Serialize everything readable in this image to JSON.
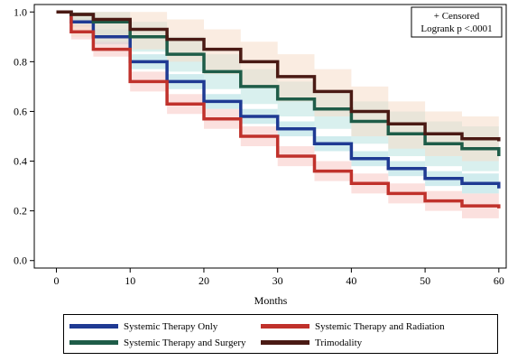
{
  "chart_data": {
    "type": "line",
    "subtype": "kaplan-meier survival with confidence bands",
    "xlabel": "Months",
    "ylabel": "",
    "xlim": [
      -3,
      61
    ],
    "ylim": [
      -0.03,
      1.03
    ],
    "xticks": [
      0,
      10,
      20,
      30,
      40,
      50,
      60
    ],
    "yticks": [
      0.0,
      0.2,
      0.4,
      0.6,
      0.8,
      1.0
    ],
    "ytick_labels": [
      "0.0",
      "0.2",
      "0.4",
      "0.6",
      "0.8",
      "1.0"
    ],
    "grid": false,
    "annotation": {
      "line1": "+ Censored",
      "line2": "Logrank p <.0001",
      "position": "top-right"
    },
    "legend_position": "bottom",
    "series": [
      {
        "name": "Systemic Therapy Only",
        "color": "#1f3a93",
        "band_color": "#a9dde0",
        "x": [
          0,
          2,
          5,
          10,
          15,
          20,
          25,
          30,
          35,
          40,
          45,
          50,
          55,
          60
        ],
        "y": [
          1.0,
          0.96,
          0.9,
          0.8,
          0.72,
          0.64,
          0.58,
          0.53,
          0.47,
          0.41,
          0.37,
          0.33,
          0.31,
          0.29
        ],
        "lower": [
          1.0,
          0.94,
          0.87,
          0.77,
          0.69,
          0.61,
          0.55,
          0.5,
          0.44,
          0.38,
          0.34,
          0.3,
          0.27,
          0.25
        ],
        "upper": [
          1.0,
          0.98,
          0.93,
          0.83,
          0.75,
          0.67,
          0.61,
          0.56,
          0.5,
          0.44,
          0.4,
          0.36,
          0.35,
          0.33
        ]
      },
      {
        "name": "Systemic Therapy and Radiation",
        "color": "#c0312b",
        "band_color": "#f7c6c3",
        "x": [
          0,
          2,
          5,
          10,
          15,
          20,
          25,
          30,
          35,
          40,
          45,
          50,
          55,
          60
        ],
        "y": [
          1.0,
          0.92,
          0.85,
          0.72,
          0.63,
          0.57,
          0.5,
          0.42,
          0.36,
          0.31,
          0.27,
          0.24,
          0.22,
          0.21
        ],
        "lower": [
          1.0,
          0.89,
          0.82,
          0.68,
          0.59,
          0.53,
          0.46,
          0.38,
          0.32,
          0.27,
          0.23,
          0.2,
          0.17,
          0.15
        ],
        "upper": [
          1.0,
          0.95,
          0.88,
          0.76,
          0.67,
          0.61,
          0.54,
          0.46,
          0.4,
          0.35,
          0.31,
          0.28,
          0.27,
          0.27
        ]
      },
      {
        "name": "Systemic Therapy and Surgery",
        "color": "#1e5c48",
        "band_color": "#b9e4e0",
        "x": [
          0,
          2,
          5,
          10,
          15,
          20,
          25,
          30,
          35,
          40,
          45,
          50,
          55,
          60
        ],
        "y": [
          1.0,
          0.99,
          0.96,
          0.9,
          0.83,
          0.76,
          0.7,
          0.65,
          0.61,
          0.56,
          0.51,
          0.47,
          0.45,
          0.42
        ],
        "lower": [
          1.0,
          0.96,
          0.9,
          0.84,
          0.76,
          0.69,
          0.63,
          0.58,
          0.53,
          0.47,
          0.42,
          0.38,
          0.36,
          0.34
        ],
        "upper": [
          1.0,
          1.0,
          1.0,
          0.96,
          0.9,
          0.83,
          0.77,
          0.72,
          0.68,
          0.64,
          0.6,
          0.56,
          0.54,
          0.51
        ]
      },
      {
        "name": "Trimodality",
        "color": "#4a1a14",
        "band_color": "#f6dcc8",
        "x": [
          0,
          2,
          5,
          10,
          15,
          20,
          25,
          30,
          35,
          40,
          45,
          50,
          55,
          60
        ],
        "y": [
          1.0,
          0.99,
          0.97,
          0.93,
          0.89,
          0.85,
          0.8,
          0.74,
          0.68,
          0.6,
          0.55,
          0.51,
          0.49,
          0.48
        ],
        "lower": [
          1.0,
          0.9,
          0.88,
          0.85,
          0.8,
          0.75,
          0.7,
          0.64,
          0.58,
          0.5,
          0.45,
          0.42,
          0.4,
          0.39
        ],
        "upper": [
          1.0,
          1.0,
          1.0,
          1.0,
          0.97,
          0.93,
          0.88,
          0.83,
          0.77,
          0.7,
          0.64,
          0.6,
          0.58,
          0.57
        ]
      }
    ],
    "legend_order": [
      0,
      1,
      2,
      3
    ]
  }
}
